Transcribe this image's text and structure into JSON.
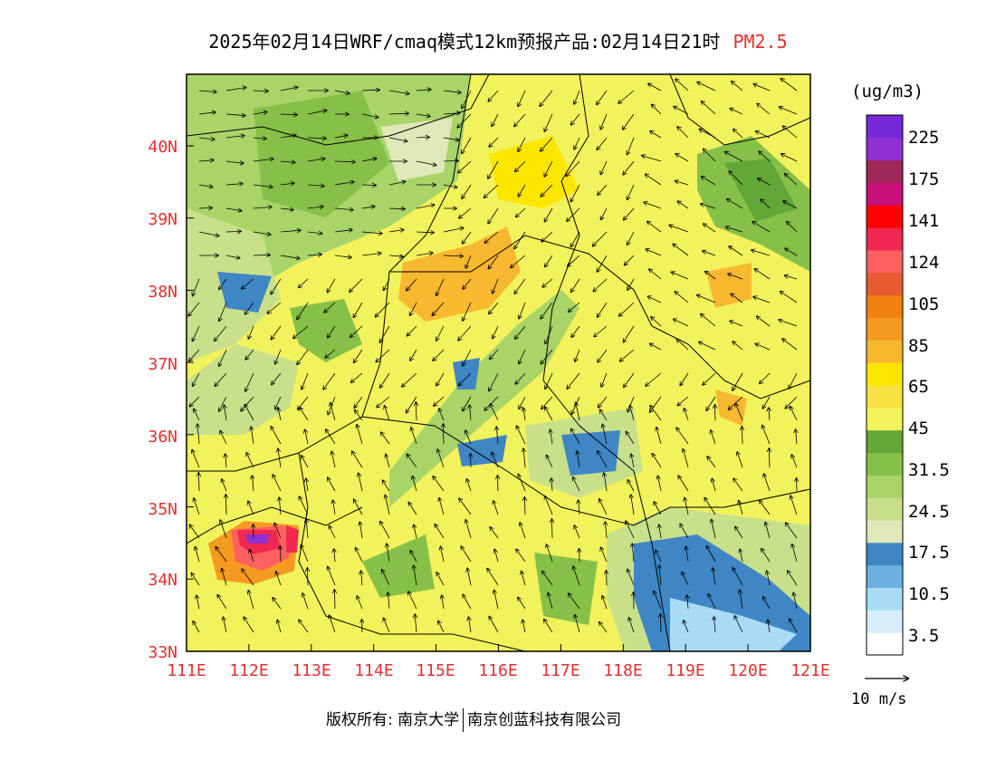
{
  "title": {
    "main": "2025年02月14日WRF/cmaq模式12km预报产品:02月14日21时",
    "variable": "PM2.5"
  },
  "axes": {
    "lat_labels": [
      "40N",
      "39N",
      "38N",
      "37N",
      "36N",
      "35N",
      "34N",
      "33N"
    ],
    "lon_labels": [
      "111E",
      "112E",
      "113E",
      "114E",
      "115E",
      "116E",
      "117E",
      "118E",
      "119E",
      "120E",
      "121E"
    ]
  },
  "colorbar": {
    "unit": "(ug/m3)",
    "colors": [
      "#ffffff",
      "#d6eefa",
      "#a8dcf5",
      "#6aafe0",
      "#3f86c4",
      "#dfe8b8",
      "#c8e08a",
      "#a8d468",
      "#86c048",
      "#62a838",
      "#f2f25c",
      "#f8e040",
      "#fce600",
      "#f8b830",
      "#f59a20",
      "#f08010",
      "#e85a30",
      "#ff6060",
      "#f02850",
      "#ff0000",
      "#c81078",
      "#a02858",
      "#9030d0",
      "#7828d8"
    ],
    "labels": [
      "3.5",
      "10.5",
      "17.5",
      "24.5",
      "31.5",
      "45",
      "65",
      "85",
      "105",
      "124",
      "141",
      "175",
      "225"
    ]
  },
  "wind": {
    "reference_label": "10 m/s"
  },
  "footer": {
    "left": "版权所有: 南京大学",
    "right": "南京创蓝科技有限公司"
  },
  "colors": {
    "accent": "#e03030",
    "base_yellow": "#f2f25c",
    "green": "#86c048",
    "blue": "#3f86c4",
    "orange": "#f59a20",
    "magenta": "#c81078"
  }
}
